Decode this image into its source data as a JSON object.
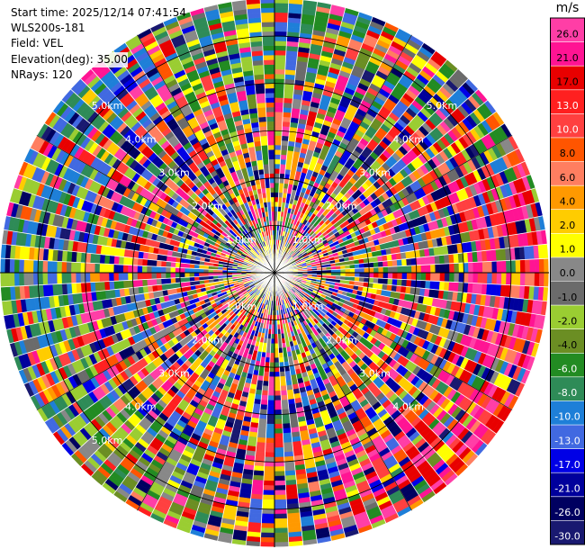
{
  "header": {
    "start_time": "Start time: 2025/12/14 07:41:54",
    "instrument": "WLS200s-181",
    "field": "Field: VEL",
    "elevation": "Elevation(deg): 35.00",
    "nrays": "NRays: 120"
  },
  "chart_data": {
    "type": "heatmap",
    "projection": "polar-ppi",
    "field": "VEL",
    "units": "m/s",
    "n_rays": 120,
    "elevation_deg": 35.0,
    "range_rings_km": [
      1.0,
      2.0,
      3.0,
      4.0,
      5.0
    ],
    "range_labels": [
      "1.0km",
      "2.0km",
      "3.0km",
      "4.0km",
      "5.0km"
    ],
    "max_range_km": 5.8,
    "colorbar": {
      "unit": "m/s",
      "tick_labels": [
        "26.0",
        "21.0",
        "17.0",
        "13.0",
        "10.0",
        "8.0",
        "6.0",
        "4.0",
        "2.0",
        "1.0",
        "0.0",
        "-1.0",
        "-2.0",
        "-4.0",
        "-6.0",
        "-8.0",
        "-10.0",
        "-13.0",
        "-17.0",
        "-21.0",
        "-26.0",
        "-30.0"
      ],
      "bins": [
        {
          "range": [
            26,
            30
          ],
          "color": "#ff3ea6"
        },
        {
          "range": [
            21,
            26
          ],
          "color": "#ff1493"
        },
        {
          "range": [
            17,
            21
          ],
          "color": "#e80000"
        },
        {
          "range": [
            13,
            17
          ],
          "color": "#ff2020"
        },
        {
          "range": [
            10,
            13
          ],
          "color": "#ff4040"
        },
        {
          "range": [
            8,
            10
          ],
          "color": "#ff5500"
        },
        {
          "range": [
            6,
            8
          ],
          "color": "#ff7e60"
        },
        {
          "range": [
            4,
            6
          ],
          "color": "#ff9900"
        },
        {
          "range": [
            2,
            4
          ],
          "color": "#ffcc00"
        },
        {
          "range": [
            1,
            2
          ],
          "color": "#ffff00"
        },
        {
          "range": [
            0,
            1
          ],
          "color": "#888888"
        },
        {
          "range": [
            -1,
            0
          ],
          "color": "#6b6b6b"
        },
        {
          "range": [
            -2,
            -1
          ],
          "color": "#9acd32"
        },
        {
          "range": [
            -4,
            -2
          ],
          "color": "#6b8e23"
        },
        {
          "range": [
            -6,
            -4
          ],
          "color": "#228b22"
        },
        {
          "range": [
            -8,
            -6
          ],
          "color": "#2e8b57"
        },
        {
          "range": [
            -10,
            -8
          ],
          "color": "#1e7fd8"
        },
        {
          "range": [
            -13,
            -10
          ],
          "color": "#4169e1"
        },
        {
          "range": [
            -17,
            -13
          ],
          "color": "#0000e6"
        },
        {
          "range": [
            -21,
            -17
          ],
          "color": "#00009c"
        },
        {
          "range": [
            -26,
            -21
          ],
          "color": "#000060"
        },
        {
          "range": [
            -30,
            -26
          ],
          "color": "#191970"
        }
      ]
    }
  }
}
